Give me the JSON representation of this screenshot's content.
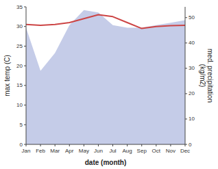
{
  "chart_data": {
    "type": "line",
    "xlabel": "date (month)",
    "ylabel": "max temp (C)",
    "y2label": "med. precipitation\n(kg/m2)",
    "categories": [
      "Jan",
      "Feb",
      "Mar",
      "Apr",
      "May",
      "Jun",
      "Jul",
      "Aug",
      "Sep",
      "Oct",
      "Nov",
      "Dec"
    ],
    "series": [
      {
        "type": "area",
        "axis": "y2",
        "color": "#c5cce8",
        "values": [
          46,
          29,
          36,
          47,
          53,
          52,
          47,
          46,
          46,
          47,
          48,
          49
        ]
      },
      {
        "type": "line",
        "color": "#cc4444",
        "values": [
          30.5,
          30.3,
          30.5,
          31.0,
          32.0,
          33.0,
          32.5,
          31.0,
          29.5,
          30.0,
          30.2,
          30.3
        ]
      }
    ],
    "ylim": [
      0,
      35
    ],
    "yticks": [
      0,
      5,
      10,
      15,
      20,
      25,
      30,
      35
    ],
    "y2lim": [
      0,
      54.25
    ],
    "y2ticks": [
      0,
      10,
      20,
      30,
      40,
      50
    ],
    "grid": false
  }
}
